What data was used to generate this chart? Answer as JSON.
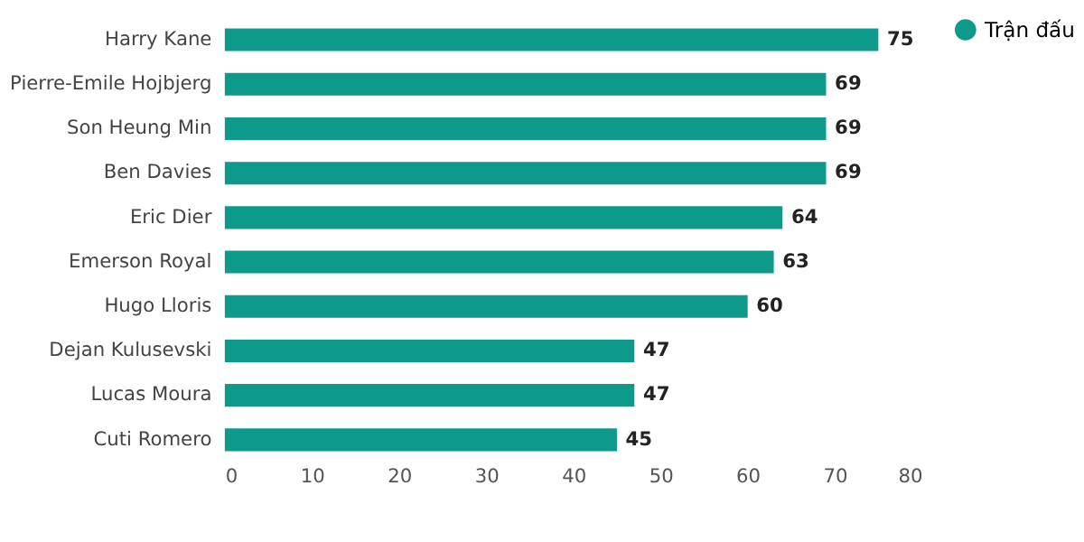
{
  "chart_data": {
    "type": "bar",
    "orientation": "horizontal",
    "categories": [
      "Harry Kane",
      "Pierre-Emile Hojbjerg",
      "Son Heung Min",
      "Ben Davies",
      "Eric Dier",
      "Emerson Royal",
      "Hugo Lloris",
      "Dejan Kulusevski",
      "Lucas Moura",
      "Cuti Romero"
    ],
    "series": [
      {
        "name": "Trận đấu",
        "color": "#0e9a8a",
        "values": [
          75,
          69,
          69,
          69,
          64,
          63,
          60,
          47,
          47,
          45
        ]
      }
    ],
    "xlim": [
      0,
      80
    ],
    "xticks": [
      0,
      10,
      20,
      30,
      40,
      50,
      60,
      70,
      80
    ],
    "data_labels": true,
    "grid": false,
    "legend": "right"
  }
}
